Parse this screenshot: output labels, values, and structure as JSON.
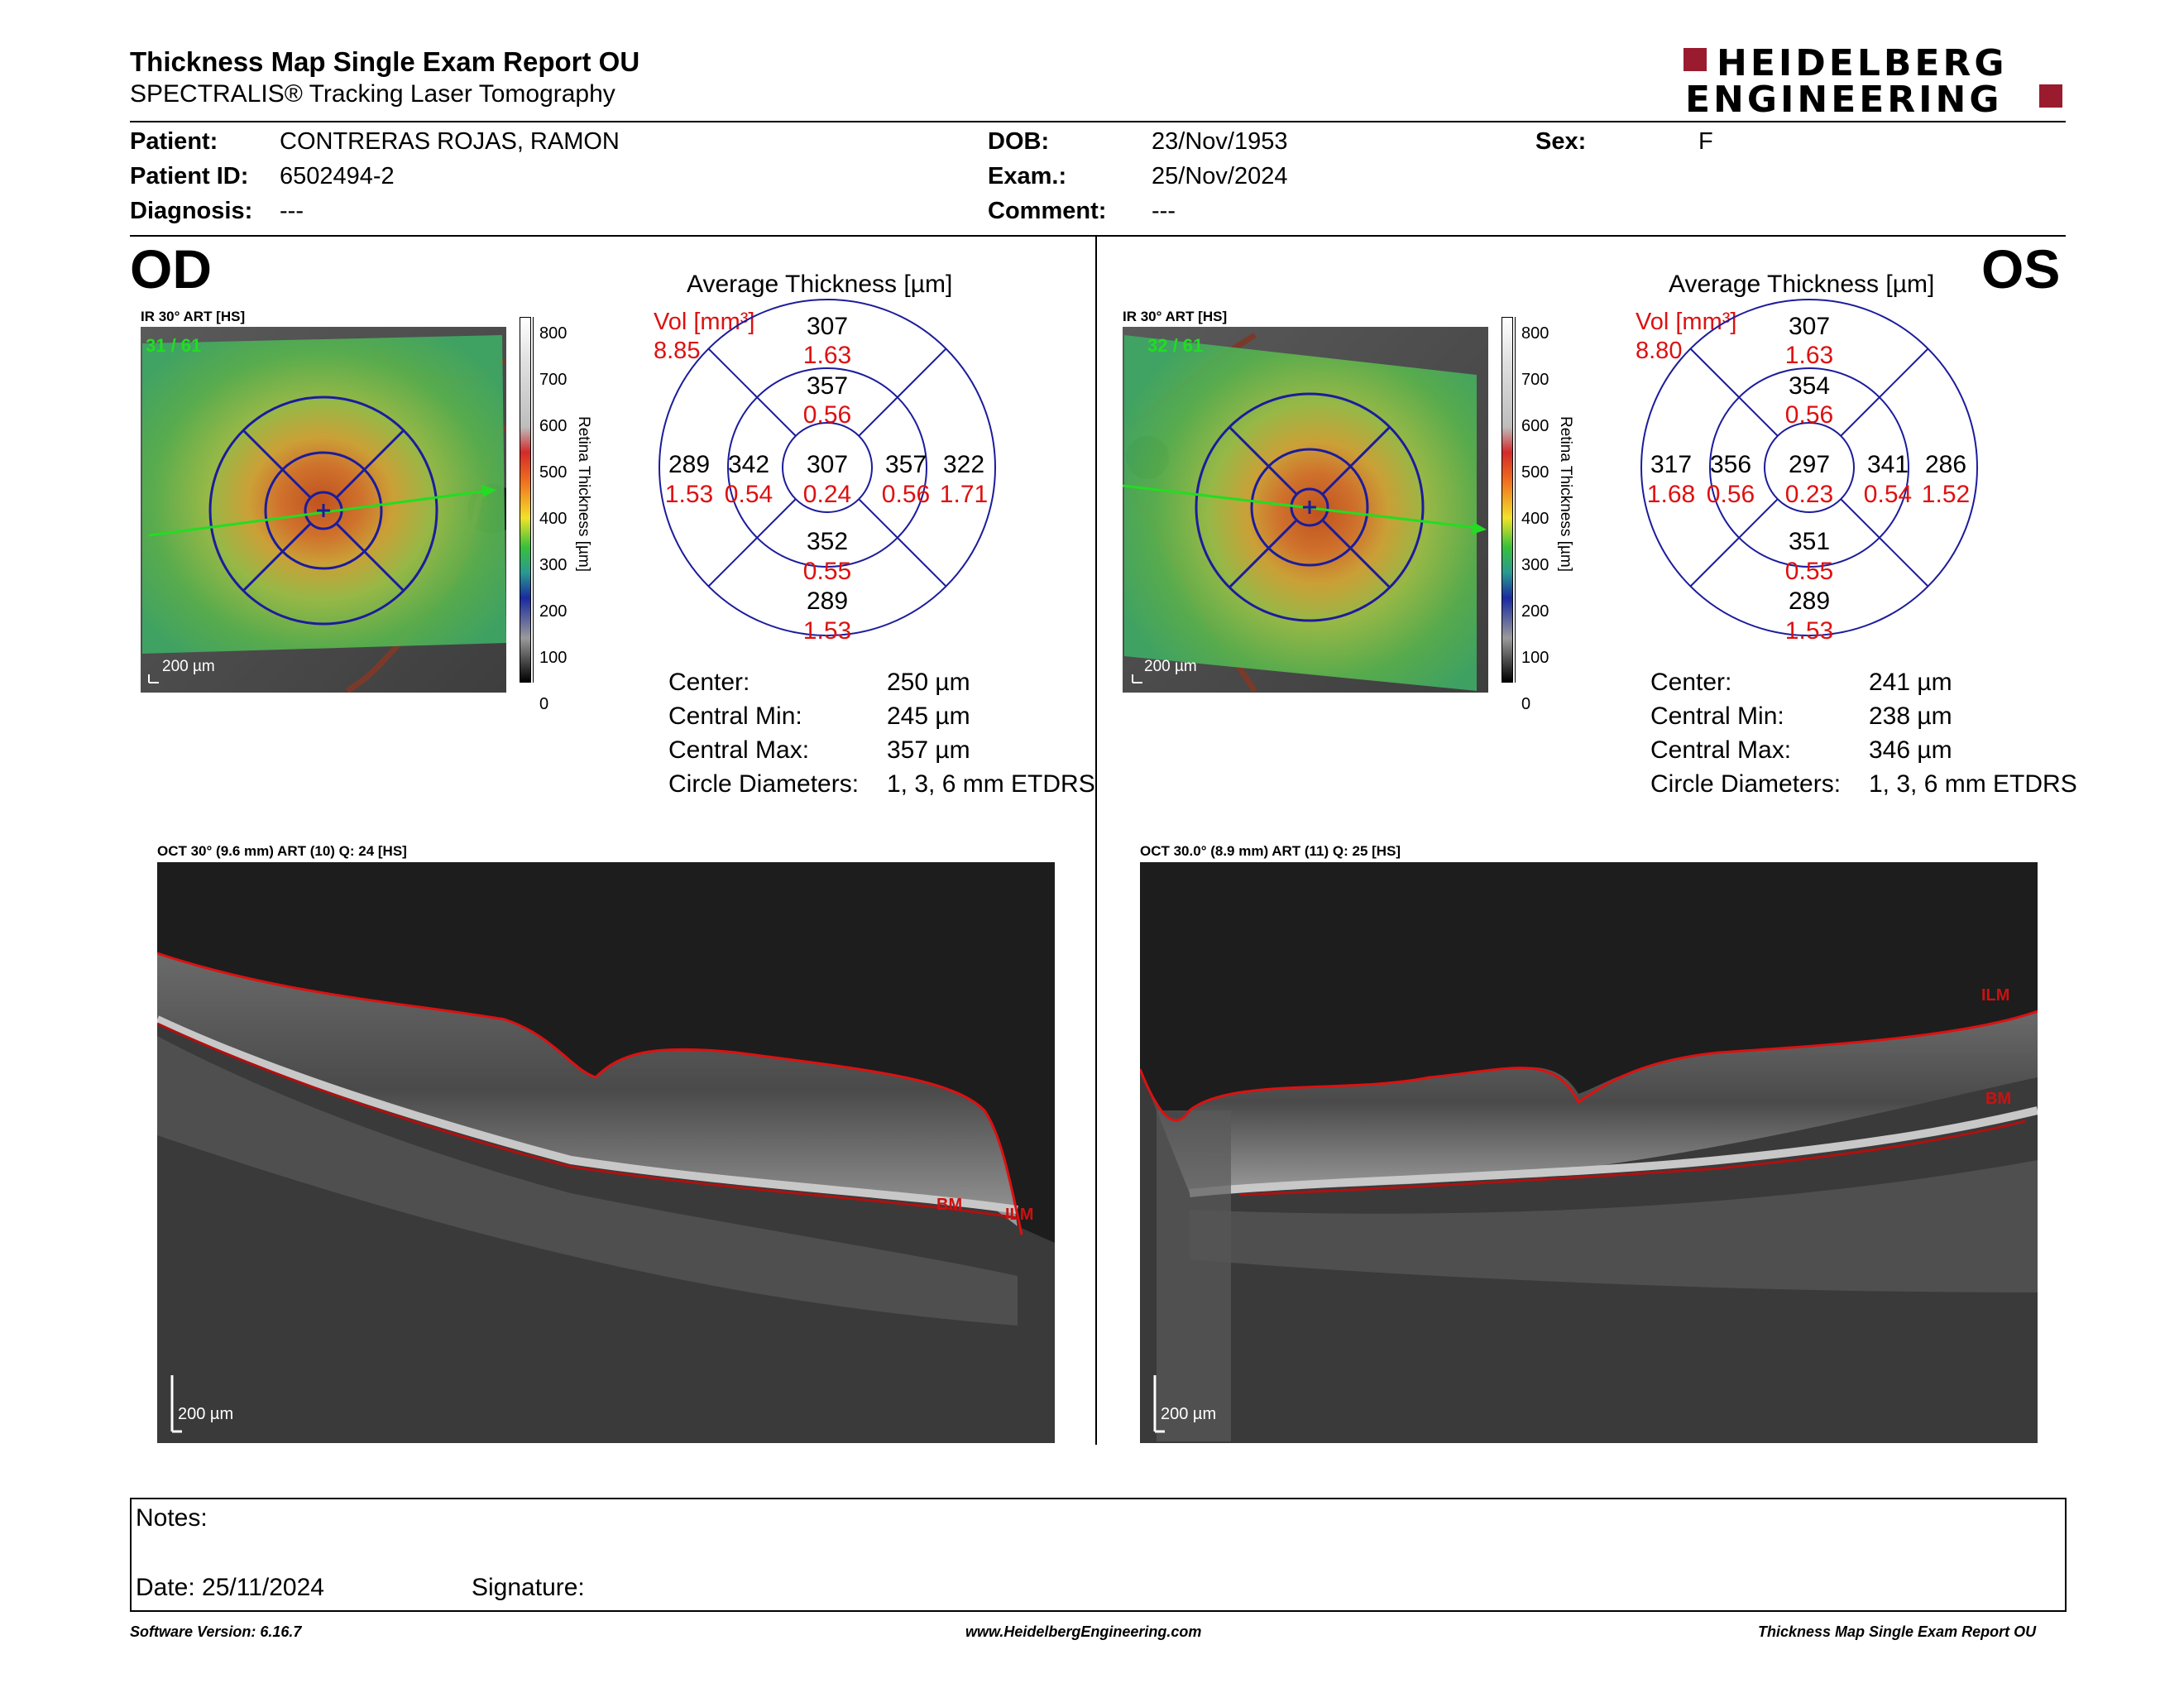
{
  "header": {
    "title": "Thickness Map Single Exam Report OU",
    "subtitle": "SPECTRALIS® Tracking Laser Tomography",
    "logo_line1": "HEIDELBERG",
    "logo_line2": "ENGINEERING",
    "brand_color": "#9a1b2e"
  },
  "patient": {
    "patient_label": "Patient:",
    "patient_value": "CONTRERAS ROJAS, RAMON",
    "id_label": "Patient ID:",
    "id_value": "6502494-2",
    "diagnosis_label": "Diagnosis:",
    "diagnosis_value": "---",
    "dob_label": "DOB:",
    "dob_value": "23/Nov/1953",
    "exam_label": "Exam.:",
    "exam_value": "25/Nov/2024",
    "comment_label": "Comment:",
    "comment_value": "---",
    "sex_label": "Sex:",
    "sex_value": "F"
  },
  "scale_ticks": [
    "800",
    "700",
    "600",
    "500",
    "400",
    "300",
    "200",
    "100",
    "0"
  ],
  "scale_title": "Retina Thickness [µm]",
  "od": {
    "eye_label": "OD",
    "fundus_title": "IR 30° ART [HS]",
    "frame_count": "31 / 61",
    "scale_bar": "200 µm",
    "chart_title": "Average Thickness [µm]",
    "vol_label": "Vol [mm³]",
    "vol_total": "8.85",
    "grid": {
      "center": {
        "t": "307",
        "v": "0.24"
      },
      "inner_top": {
        "t": "357",
        "v": "0.56"
      },
      "inner_bottom": {
        "t": "352",
        "v": "0.55"
      },
      "inner_left": {
        "t": "342",
        "v": "0.54"
      },
      "inner_right": {
        "t": "357",
        "v": "0.56"
      },
      "outer_top": {
        "t": "307",
        "v": "1.63"
      },
      "outer_bottom": {
        "t": "289",
        "v": "1.53"
      },
      "outer_left": {
        "t": "289",
        "v": "1.53"
      },
      "outer_right": {
        "t": "322",
        "v": "1.71"
      }
    },
    "stats": [
      {
        "label": "Center:",
        "value": "250 µm"
      },
      {
        "label": "Central Min:",
        "value": "245 µm"
      },
      {
        "label": "Central Max:",
        "value": "357 µm"
      },
      {
        "label": "Circle Diameters:",
        "value": "1, 3, 6 mm ETDRS"
      }
    ],
    "oct_title": "OCT 30° (9.6 mm) ART (10) Q: 24 [HS]",
    "oct_scale": "200 µm",
    "label_bm": "BM",
    "label_ilm": "ILM"
  },
  "os": {
    "eye_label": "OS",
    "fundus_title": "IR 30° ART [HS]",
    "frame_count": "32 / 61",
    "scale_bar": "200 µm",
    "chart_title": "Average Thickness [µm]",
    "vol_label": "Vol [mm³]",
    "vol_total": "8.80",
    "grid": {
      "center": {
        "t": "297",
        "v": "0.23"
      },
      "inner_top": {
        "t": "354",
        "v": "0.56"
      },
      "inner_bottom": {
        "t": "351",
        "v": "0.55"
      },
      "inner_left": {
        "t": "356",
        "v": "0.56"
      },
      "inner_right": {
        "t": "341",
        "v": "0.54"
      },
      "outer_top": {
        "t": "307",
        "v": "1.63"
      },
      "outer_bottom": {
        "t": "289",
        "v": "1.53"
      },
      "outer_left": {
        "t": "317",
        "v": "1.68"
      },
      "outer_right": {
        "t": "286",
        "v": "1.52"
      }
    },
    "stats": [
      {
        "label": "Center:",
        "value": "241 µm"
      },
      {
        "label": "Central Min:",
        "value": "238 µm"
      },
      {
        "label": "Central Max:",
        "value": "346 µm"
      },
      {
        "label": "Circle Diameters:",
        "value": "1, 3, 6 mm ETDRS"
      }
    ],
    "oct_title": "OCT 30.0° (8.9 mm) ART (11) Q: 25 [HS]",
    "oct_scale": "200 µm",
    "label_bm": "BM",
    "label_ilm": "ILM"
  },
  "notes": {
    "notes_label": "Notes:",
    "date_label": "Date: 25/11/2024",
    "signature_label": "Signature:"
  },
  "footer": {
    "software": "Software Version: 6.16.7",
    "website": "www.HeidelbergEngineering.com",
    "report_name": "Thickness Map Single Exam Report OU"
  }
}
